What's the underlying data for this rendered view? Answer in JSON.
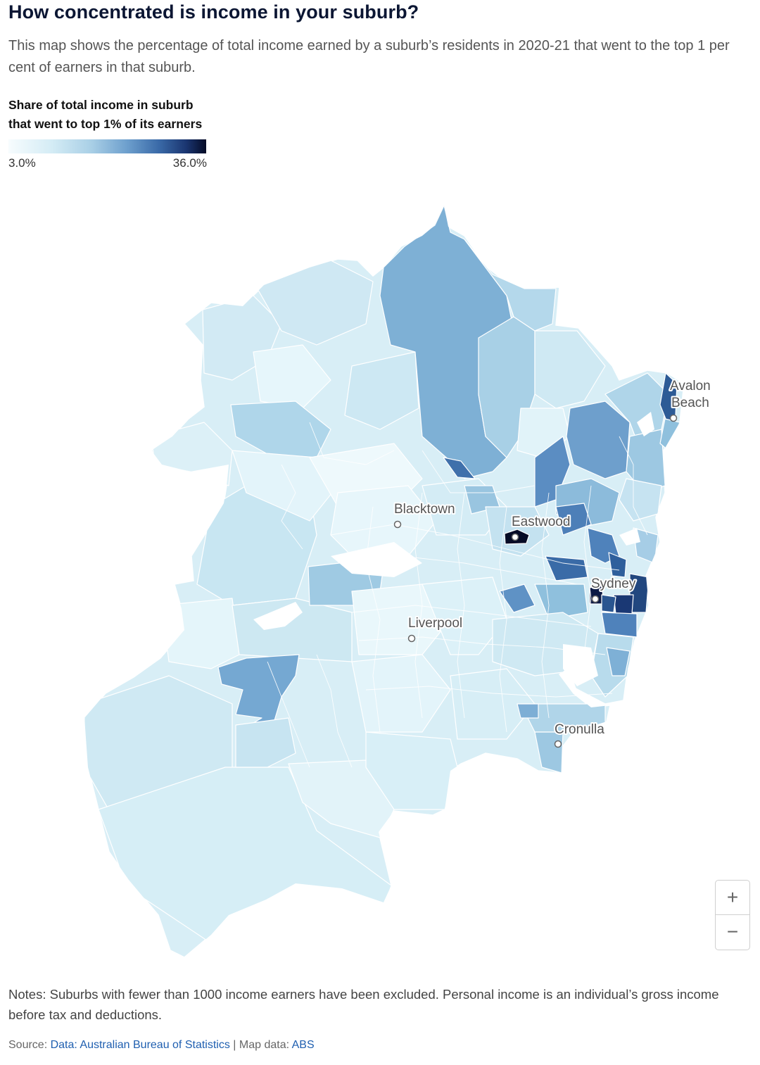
{
  "header": {
    "title": "How concentrated is income in your suburb?",
    "subtitle": "This map shows the percentage of total income earned by a suburb’s residents in 2020-21 that went to the top 1 per cent of earners in that suburb."
  },
  "legend": {
    "title": "Share of total income in suburb that went to top 1% of its earners",
    "min_label": "3.0%",
    "max_label": "36.0%",
    "scale_colors": [
      "#f7fcfe",
      "#d4ecf5",
      "#a9cfe6",
      "#6d9fcd",
      "#3a6aa8",
      "#1a3570",
      "#050b26"
    ]
  },
  "map": {
    "places": [
      {
        "name": "Avalon\nBeach",
        "id": "avalon-beach"
      },
      {
        "name": "Blacktown",
        "id": "blacktown"
      },
      {
        "name": "Eastwood",
        "id": "eastwood"
      },
      {
        "name": "Sydney",
        "id": "sydney"
      },
      {
        "name": "Liverpool",
        "id": "liverpool"
      },
      {
        "name": "Cronulla",
        "id": "cronulla"
      }
    ]
  },
  "zoom": {
    "in_label": "+",
    "out_label": "−"
  },
  "notes": "Notes: Suburbs with fewer than 1000 income earners have been excluded. Personal income is an individual’s gross income before tax and deductions.",
  "source": {
    "prefix": "Source: ",
    "link1": "Data: Australian Bureau of Statistics",
    "separator": " | Map data: ",
    "link2": "ABS"
  }
}
